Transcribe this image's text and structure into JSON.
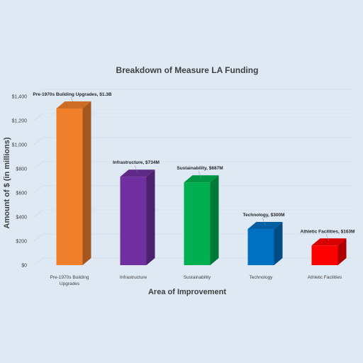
{
  "chart_data": {
    "type": "bar",
    "title": "Breakdown of Measure LA Funding",
    "xlabel": "Area of Improvement",
    "ylabel": "Amount of $ (in millions)",
    "ylim": [
      0,
      1400
    ],
    "yticks": [
      {
        "value": 0,
        "label": "$0"
      },
      {
        "value": 200,
        "label": "$200"
      },
      {
        "value": 400,
        "label": "$400"
      },
      {
        "value": 600,
        "label": "$600"
      },
      {
        "value": 800,
        "label": "$800"
      },
      {
        "value": 1000,
        "label": "$1,000"
      },
      {
        "value": 1200,
        "label": "$1,200"
      },
      {
        "value": 1400,
        "label": "$1,400"
      }
    ],
    "grid": true,
    "categories": [
      [
        "Pre-1970s Building",
        "Upgrades"
      ],
      [
        "Infrastructure"
      ],
      [
        "Sustainability"
      ],
      [
        "Technology"
      ],
      [
        "Athletic Facilities"
      ]
    ],
    "values": [
      1300,
      734,
      687,
      300,
      163
    ],
    "data_labels": [
      "Pre-1970s Building Upgrades, $1.3B",
      "Infrastructure, $734M",
      "Sustainability, $687M",
      "Technology, $300M",
      "Athletic Facilities, $163M"
    ],
    "colors": [
      "#f07f2c",
      "#7030a0",
      "#00b050",
      "#0070c0",
      "#ff0000"
    ]
  }
}
